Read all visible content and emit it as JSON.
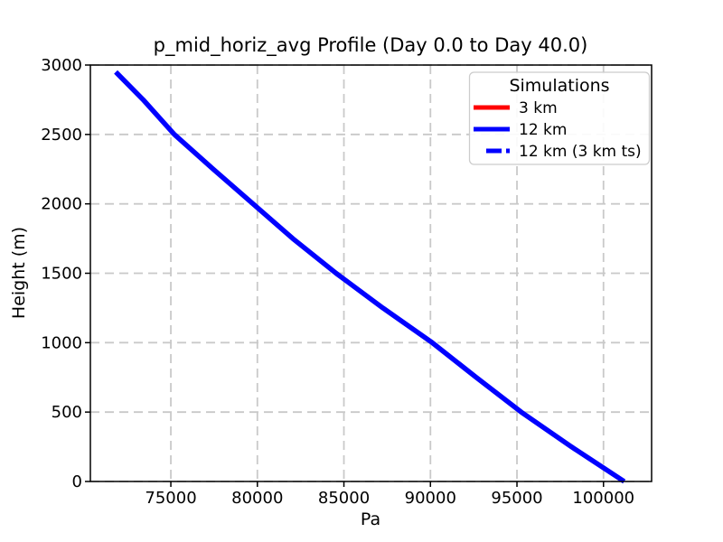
{
  "chart_data": {
    "type": "line",
    "title": "p_mid_horiz_avg Profile (Day 0.0 to Day 40.0)",
    "xlabel": "Pa",
    "ylabel": "Height (m)",
    "xlim": [
      70350,
      102780
    ],
    "ylim": [
      0,
      3000
    ],
    "xticks": [
      75000,
      80000,
      85000,
      90000,
      95000,
      100000
    ],
    "yticks": [
      0,
      500,
      1000,
      1500,
      2000,
      2500,
      3000
    ],
    "grid": {
      "visible": true,
      "style": "dashed",
      "color": "#c9c9c9"
    },
    "legend": {
      "title": "Simulations",
      "location": "upper-right",
      "entries": [
        {
          "label": "3 km",
          "color": "#ff0000",
          "linestyle": "solid"
        },
        {
          "label": "12 km",
          "color": "#0000ff",
          "linestyle": "solid"
        },
        {
          "label": "12 km (3 km ts)",
          "color": "#0000ff",
          "linestyle": "dashed"
        }
      ]
    },
    "series": [
      {
        "name": "12 km",
        "color": "#0000ff",
        "linestyle": "solid",
        "x_pa": [
          101200,
          98150,
          95250,
          92650,
          90100,
          87250,
          84550,
          82050,
          79750,
          77450,
          75200,
          73400,
          71820
        ],
        "y_height_m": [
          0,
          250,
          500,
          750,
          1000,
          1250,
          1500,
          1750,
          2000,
          2250,
          2500,
          2750,
          2950
        ]
      }
    ]
  }
}
